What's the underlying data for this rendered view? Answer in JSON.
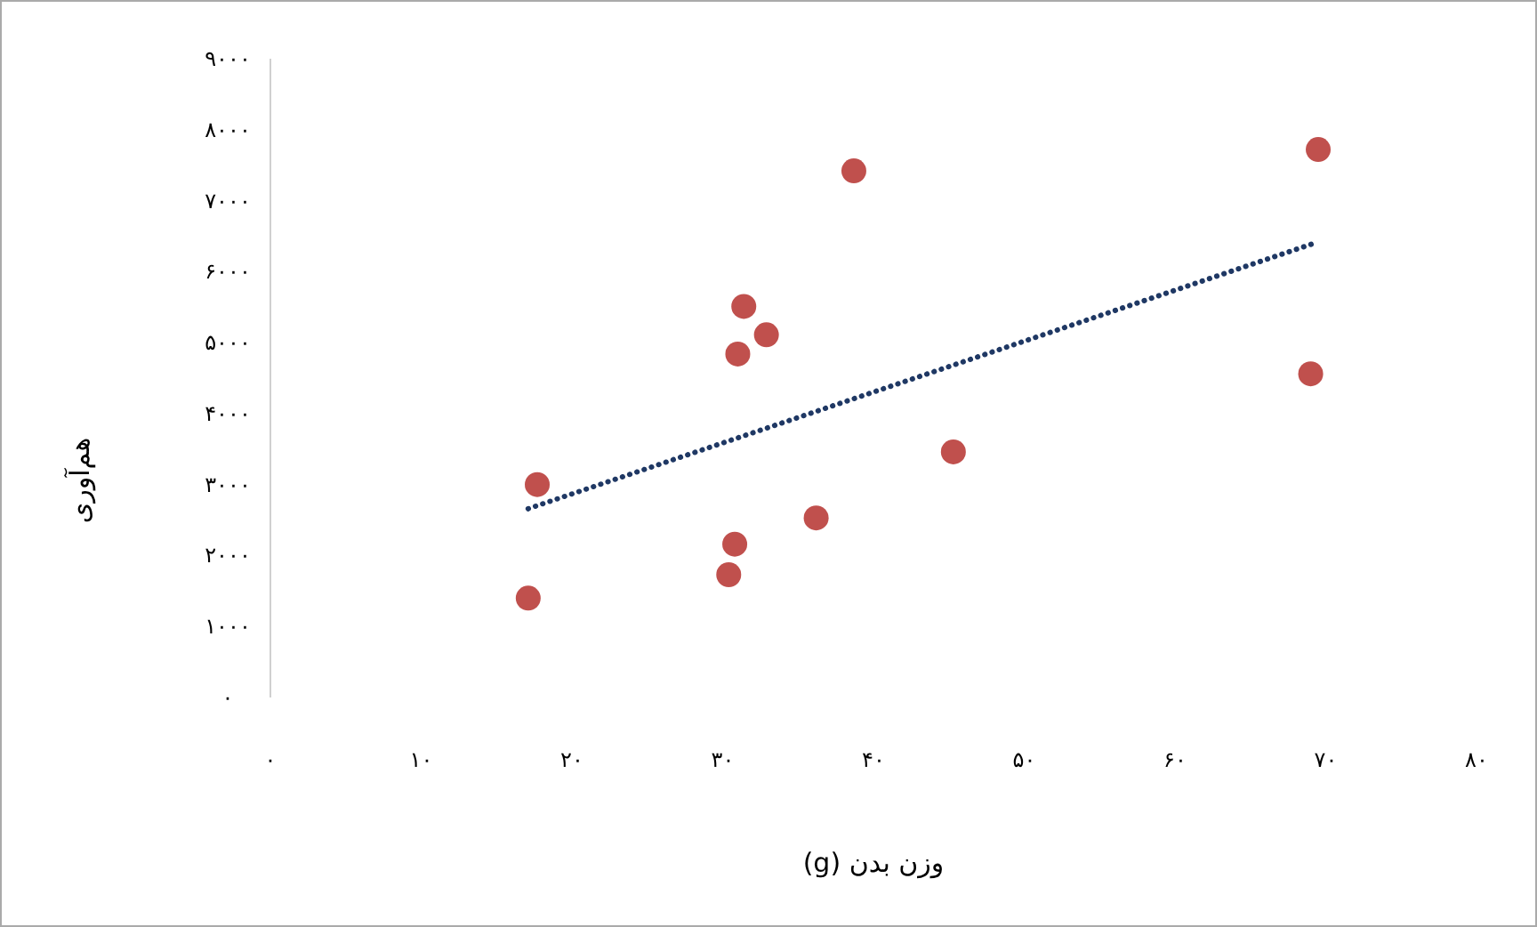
{
  "chart_data": {
    "type": "scatter",
    "xlabel": "وزن بدن (g)",
    "ylabel": "هم‌آوری",
    "xlim": [
      0,
      80
    ],
    "ylim": [
      0,
      9000
    ],
    "xticks": [
      {
        "value": 0,
        "label": "۰"
      },
      {
        "value": 10,
        "label": "۱۰"
      },
      {
        "value": 20,
        "label": "۲۰"
      },
      {
        "value": 30,
        "label": "۳۰"
      },
      {
        "value": 40,
        "label": "۴۰"
      },
      {
        "value": 50,
        "label": "۵۰"
      },
      {
        "value": 60,
        "label": "۶۰"
      },
      {
        "value": 70,
        "label": "۷۰"
      },
      {
        "value": 80,
        "label": "۸۰"
      }
    ],
    "yticks": [
      {
        "value": 0,
        "label": "۰"
      },
      {
        "value": 1000,
        "label": "۱۰۰۰"
      },
      {
        "value": 2000,
        "label": "۲۰۰۰"
      },
      {
        "value": 3000,
        "label": "۳۰۰۰"
      },
      {
        "value": 4000,
        "label": "۴۰۰۰"
      },
      {
        "value": 5000,
        "label": "۵۰۰۰"
      },
      {
        "value": 6000,
        "label": "۶۰۰۰"
      },
      {
        "value": 7000,
        "label": "۷۰۰۰"
      },
      {
        "value": 8000,
        "label": "۸۰۰۰"
      },
      {
        "value": 9000,
        "label": "۹۰۰۰"
      }
    ],
    "series": [
      {
        "type": "scatter",
        "color": "#c0504d",
        "marker": "circle",
        "x": [
          17.1,
          17.7,
          30.4,
          30.8,
          31.0,
          31.4,
          32.9,
          36.2,
          38.7,
          45.3,
          69.0,
          69.5
        ],
        "values": [
          1400,
          3000,
          1730,
          2160,
          4840,
          5510,
          5110,
          2530,
          7420,
          3460,
          4560,
          7720
        ]
      },
      {
        "type": "line",
        "color": "#1f3864",
        "line_style": "dotted",
        "x": [
          17.1,
          69.1
        ],
        "values": [
          2660,
          6390
        ]
      }
    ]
  }
}
